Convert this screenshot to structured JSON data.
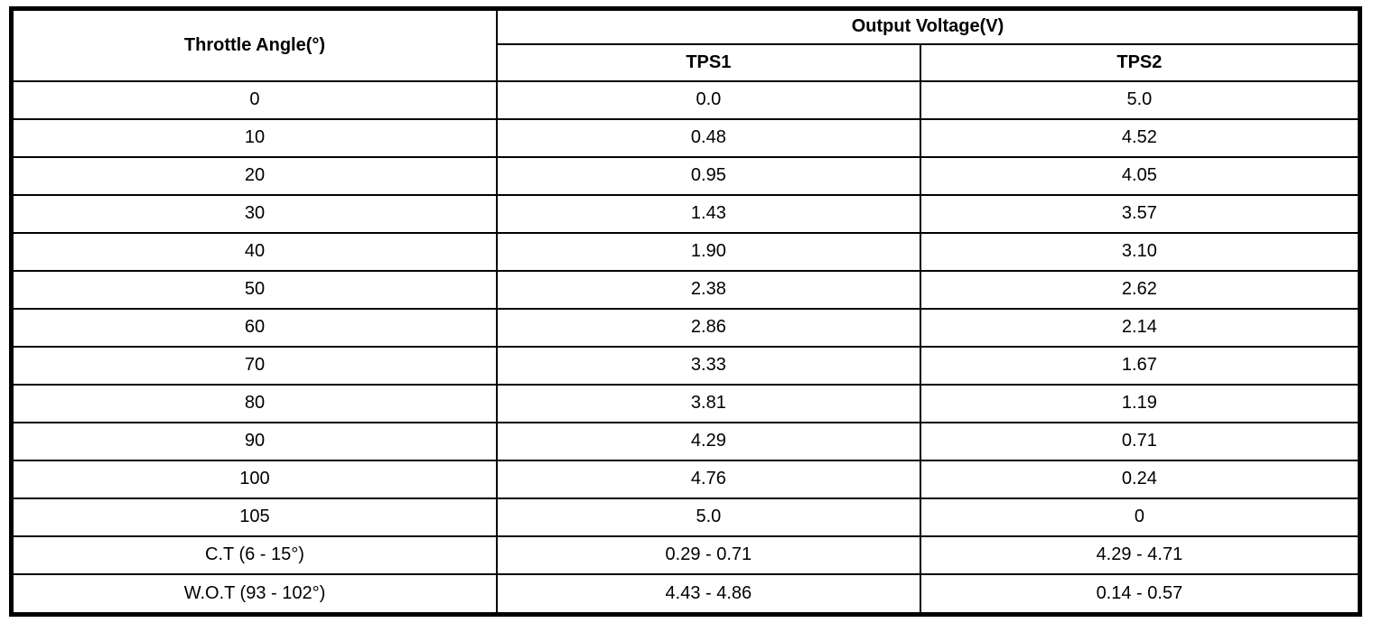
{
  "page": {
    "background": "#ffffff",
    "border_color": "#000000",
    "text_color": "#000000"
  },
  "table": {
    "angle_header": "Throttle Angle(°)",
    "voltage_header": "Output Voltage(V)",
    "sub_headers": [
      "TPS1",
      "TPS2"
    ],
    "rows": [
      {
        "angle": "0",
        "tps1": "0.0",
        "tps2": "5.0"
      },
      {
        "angle": "10",
        "tps1": "0.48",
        "tps2": "4.52"
      },
      {
        "angle": "20",
        "tps1": "0.95",
        "tps2": "4.05"
      },
      {
        "angle": "30",
        "tps1": "1.43",
        "tps2": "3.57"
      },
      {
        "angle": "40",
        "tps1": "1.90",
        "tps2": "3.10"
      },
      {
        "angle": "50",
        "tps1": "2.38",
        "tps2": "2.62"
      },
      {
        "angle": "60",
        "tps1": "2.86",
        "tps2": "2.14"
      },
      {
        "angle": "70",
        "tps1": "3.33",
        "tps2": "1.67"
      },
      {
        "angle": "80",
        "tps1": "3.81",
        "tps2": "1.19"
      },
      {
        "angle": "90",
        "tps1": "4.29",
        "tps2": "0.71"
      },
      {
        "angle": "100",
        "tps1": "4.76",
        "tps2": "0.24"
      },
      {
        "angle": "105",
        "tps1": "5.0",
        "tps2": "0"
      },
      {
        "angle": "C.T (6 - 15°)",
        "tps1": "0.29 - 0.71",
        "tps2": "4.29 - 4.71"
      },
      {
        "angle": "W.O.T (93 - 102°)",
        "tps1": "4.43 - 4.86",
        "tps2": "0.14 - 0.57"
      }
    ]
  }
}
